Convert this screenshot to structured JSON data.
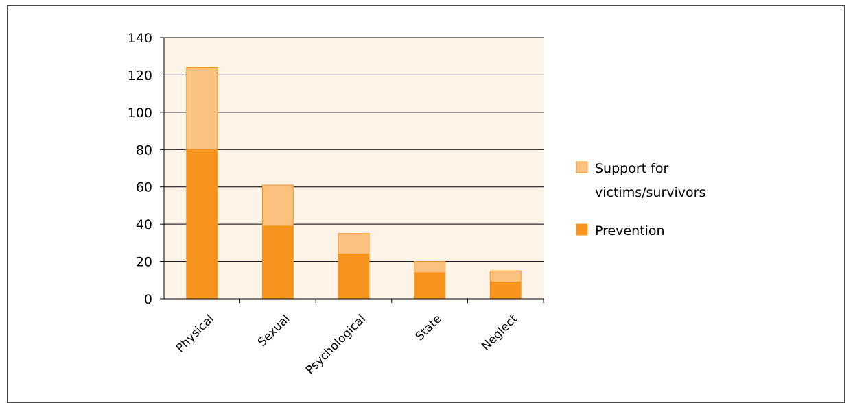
{
  "chart_data": {
    "type": "bar",
    "stacked": true,
    "title": "",
    "xlabel": "",
    "ylabel": "",
    "categories": [
      "Physical",
      "Sexual",
      "Psychological",
      "State",
      "Neglect"
    ],
    "series": [
      {
        "name": "Prevention",
        "values": [
          80,
          39,
          24,
          14,
          9
        ],
        "color": "#f7941d"
      },
      {
        "name": "Support for victims/survivors",
        "values": [
          44,
          22,
          11,
          6,
          6
        ],
        "color": "#fac27e"
      }
    ],
    "ylim": [
      0,
      140
    ],
    "yticks": [
      "0",
      "20",
      "40",
      "60",
      "80",
      "100",
      "120",
      "140"
    ],
    "grid": true,
    "plot_background": "#fdf3e6",
    "legend": {
      "position": "right",
      "items": [
        {
          "label_lines": [
            "Support for",
            "victims/survivors"
          ],
          "color": "#fac27e"
        },
        {
          "label_lines": [
            "Prevention"
          ],
          "color": "#f7941d"
        }
      ]
    }
  }
}
